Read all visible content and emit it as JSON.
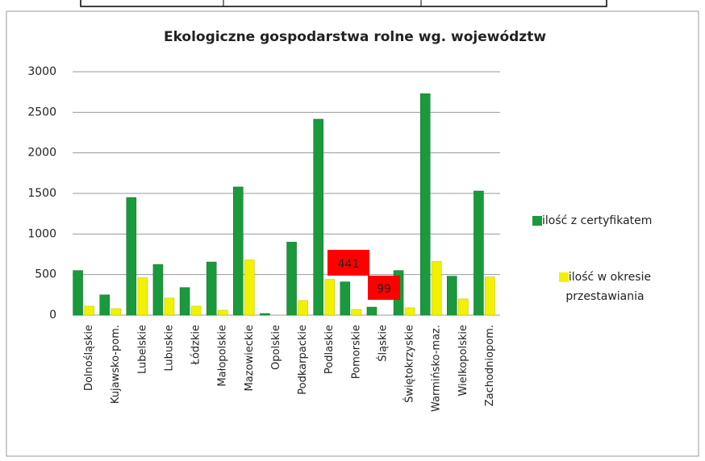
{
  "chart_data": {
    "type": "bar",
    "title": "Ekologiczne gospodarstwa rolne wg. województw",
    "categories": [
      "Dolnośląskie",
      "Kujawsko-pom.",
      "Lubelskie",
      "Lubuskie",
      "Łódzkie",
      "Małopolskie",
      "Mazowieckie",
      "Opolskie",
      "Podkarpackie",
      "Podlaskie",
      "Pomorskie",
      "Śląskie",
      "Świętokrzyskie",
      "Warmińsko-maz.",
      "Wielkopolskie",
      "Zachodniopom."
    ],
    "series": [
      {
        "name": "ilość z certyfikatem",
        "color": "#1a9a3c",
        "values": [
          550,
          250,
          1450,
          625,
          340,
          655,
          1580,
          20,
          900,
          2415,
          410,
          99,
          550,
          2730,
          480,
          1530
        ]
      },
      {
        "name": "ilość w okresie przestawiania",
        "color": "#f2f200",
        "values": [
          110,
          80,
          460,
          210,
          110,
          60,
          680,
          0,
          180,
          441,
          70,
          0,
          90,
          660,
          200,
          470
        ]
      }
    ],
    "annotations": [
      "441",
      "99"
    ],
    "ylim": [
      0,
      3000
    ],
    "yticks": [
      0,
      500,
      1000,
      1500,
      2000,
      2500,
      3000
    ],
    "grid": true,
    "legend": "right"
  }
}
